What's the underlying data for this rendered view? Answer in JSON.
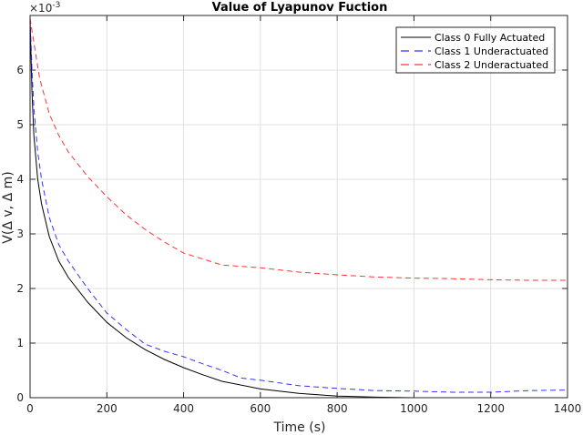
{
  "chart_data": {
    "type": "line",
    "title": "Value of Lyapunov Fuction",
    "xlabel": "Time (s)",
    "ylabel": "V(Δ v, Δ m)",
    "y_exponent_label": "×10",
    "y_exponent_power": "-3",
    "xlim": [
      0,
      1400
    ],
    "ylim": [
      0,
      7
    ],
    "x_ticks": [
      0,
      200,
      400,
      600,
      800,
      1000,
      1200,
      1400
    ],
    "x_tick_labels": [
      "0",
      "200",
      "400",
      "600",
      "800",
      "1000",
      "1200",
      "1400"
    ],
    "y_ticks": [
      0,
      1,
      2,
      3,
      4,
      5,
      6
    ],
    "y_tick_labels": [
      "0",
      "1",
      "2",
      "3",
      "4",
      "5",
      "6"
    ],
    "grid": true,
    "legend_position": "northeast",
    "series": [
      {
        "name": "Class 0 Fully Actuated",
        "color": "#000000",
        "style": "solid",
        "x": [
          0,
          5,
          10,
          20,
          30,
          50,
          75,
          100,
          150,
          200,
          250,
          300,
          350,
          400,
          450,
          500,
          600,
          700,
          800,
          900,
          1000,
          1200,
          1400
        ],
        "y": [
          6.95,
          5.6,
          4.8,
          4.0,
          3.55,
          2.95,
          2.5,
          2.2,
          1.75,
          1.38,
          1.1,
          0.88,
          0.7,
          0.55,
          0.42,
          0.3,
          0.16,
          0.08,
          0.03,
          0.01,
          0.0,
          0.0,
          0.0
        ]
      },
      {
        "name": "Class 1 Underactuated",
        "color": "#0000ff",
        "style": "dashed",
        "x": [
          0,
          5,
          10,
          20,
          30,
          50,
          75,
          100,
          150,
          200,
          250,
          300,
          350,
          400,
          450,
          500,
          550,
          600,
          700,
          800,
          900,
          1000,
          1100,
          1200,
          1300,
          1400
        ],
        "y": [
          6.95,
          6.0,
          5.3,
          4.5,
          4.0,
          3.3,
          2.8,
          2.5,
          2.0,
          1.55,
          1.25,
          0.98,
          0.85,
          0.75,
          0.62,
          0.5,
          0.36,
          0.32,
          0.22,
          0.17,
          0.13,
          0.12,
          0.1,
          0.1,
          0.13,
          0.14
        ]
      },
      {
        "name": "Class 2 Underactuated",
        "color": "#ff0000",
        "style": "dashed",
        "x": [
          0,
          10,
          25,
          50,
          75,
          100,
          150,
          200,
          250,
          300,
          350,
          400,
          500,
          600,
          700,
          800,
          900,
          1000,
          1100,
          1200,
          1300,
          1400
        ],
        "y": [
          6.95,
          6.5,
          5.85,
          5.2,
          4.8,
          4.5,
          4.05,
          3.68,
          3.35,
          3.08,
          2.85,
          2.65,
          2.43,
          2.38,
          2.3,
          2.25,
          2.21,
          2.19,
          2.18,
          2.16,
          2.15,
          2.15
        ]
      }
    ]
  },
  "colors": {
    "axis": "#262626",
    "grid": "#e0e0e0",
    "background": "#ffffff"
  }
}
